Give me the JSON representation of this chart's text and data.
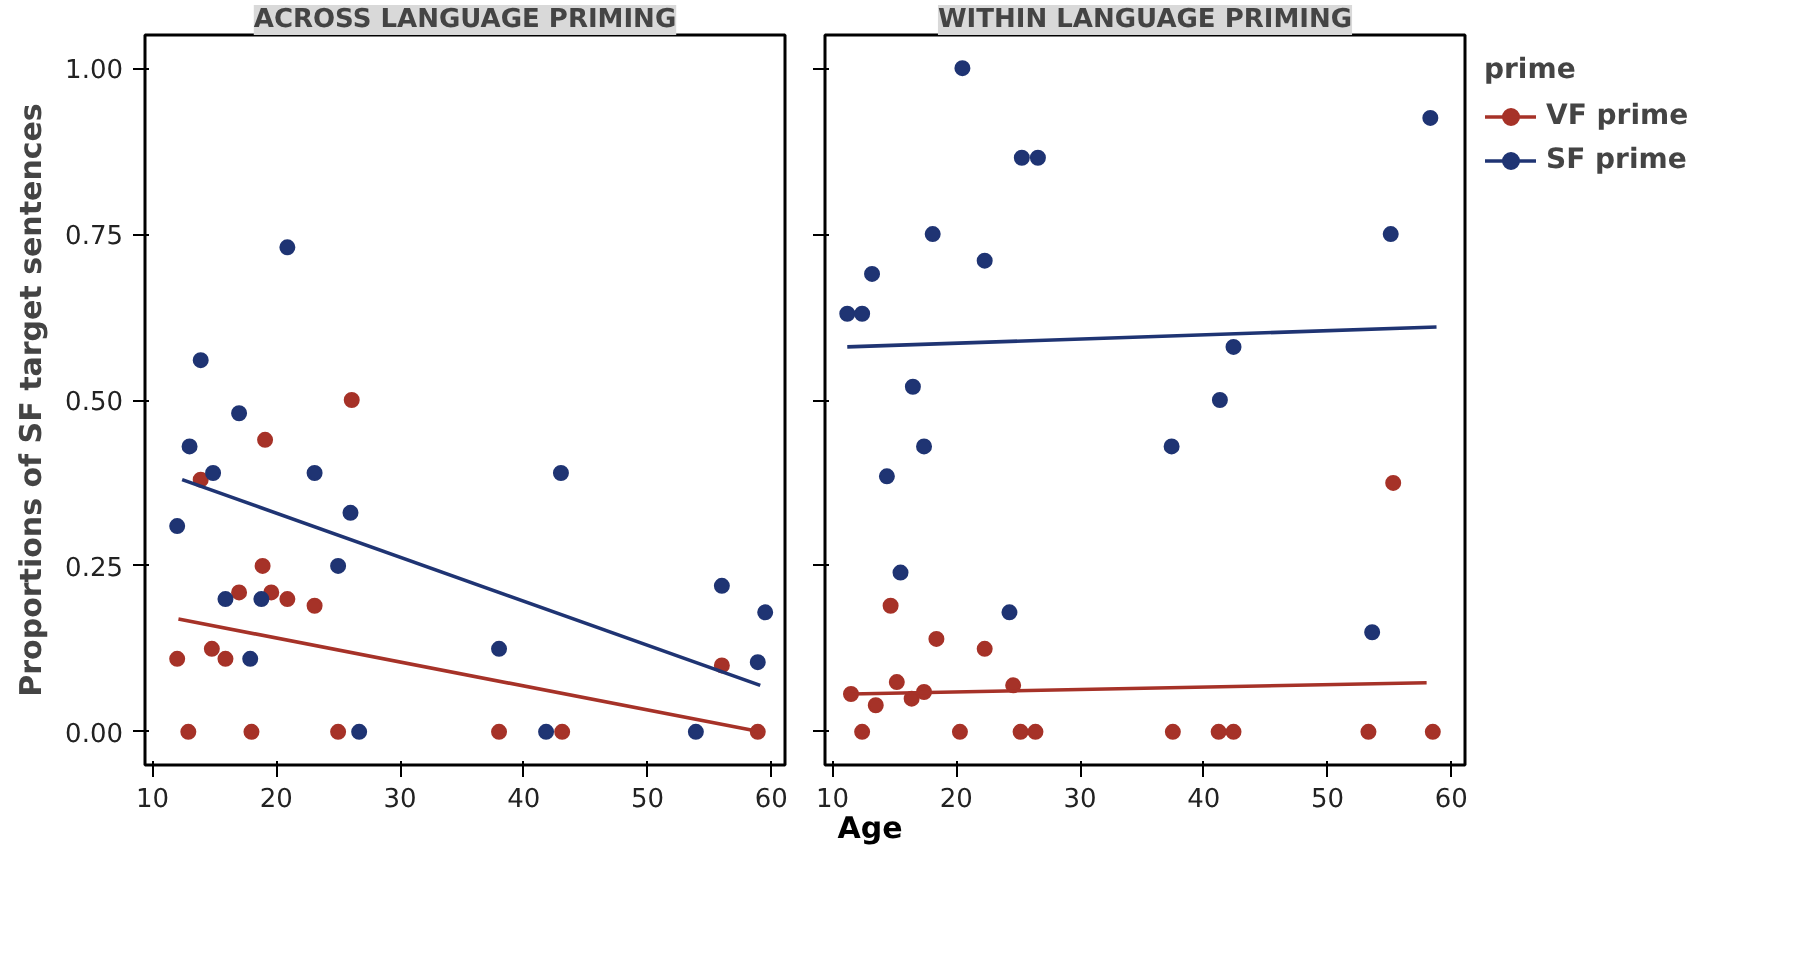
{
  "chart_data": [
    {
      "type": "scatter",
      "title": "ACROSS LANGUAGE PRIMING",
      "ylabel": "Proportions of SF target sentences",
      "xlabel": "Age",
      "xlim": [
        9.4,
        61.1
      ],
      "ylim": [
        -0.05,
        1.05
      ],
      "xticks": [
        10,
        20,
        30,
        40,
        50,
        60
      ],
      "yticks": [
        {
          "value": 0,
          "label": "0.00"
        },
        {
          "value": 0.25,
          "label": "0.25"
        },
        {
          "value": 0.5,
          "label": "0.50"
        },
        {
          "value": 0.75,
          "label": "0.75"
        },
        {
          "value": 1,
          "label": "1.00"
        }
      ],
      "grid": false,
      "series": [
        {
          "marker": "circle",
          "color": "#a63228",
          "x": [
            12.0,
            12.9,
            13.9,
            14.8,
            15.9,
            17.0,
            18.0,
            18.9,
            19.1,
            19.6,
            20.9,
            23.1,
            25.0,
            26.1,
            38.0,
            43.1,
            56.0,
            58.9
          ],
          "values": [
            0.11,
            0,
            0.38,
            0.125,
            0.11,
            0.21,
            0,
            0.25,
            0.44,
            0.21,
            0.2,
            0.19,
            0,
            0.5,
            0,
            0,
            0.1,
            0
          ]
        },
        {
          "marker": "circle",
          "color": "#1f3473",
          "x": [
            12.0,
            13.0,
            13.9,
            14.9,
            15.9,
            17.0,
            17.9,
            18.8,
            20.9,
            23.1,
            25.0,
            26.0,
            26.7,
            38.0,
            41.8,
            43.0,
            53.9,
            56.0,
            58.9,
            59.5
          ],
          "values": [
            0.31,
            0.43,
            0.56,
            0.39,
            0.2,
            0.48,
            0.11,
            0.2,
            0.73,
            0.39,
            0.25,
            0.33,
            0,
            0.125,
            0,
            0.39,
            0,
            0.22,
            0.105,
            0.18
          ]
        },
        {
          "type": "line",
          "color": "#a63228",
          "x": [
            12.1,
            59.1
          ],
          "values": [
            0.17,
            0.0
          ]
        },
        {
          "type": "line",
          "color": "#1f3473",
          "x": [
            12.4,
            59.1
          ],
          "values": [
            0.38,
            0.07
          ]
        }
      ]
    },
    {
      "type": "scatter",
      "title": "WITHIN LANGUAGE PRIMING",
      "legend_title": "prime",
      "xlim": [
        9.4,
        61.1
      ],
      "ylim": [
        -0.05,
        1.05
      ],
      "xticks": [
        10,
        20,
        30,
        40,
        50,
        60
      ],
      "yticks": [
        0,
        0.25,
        0.5,
        0.75,
        1
      ],
      "tick_labels": "x",
      "grid": false,
      "legend": "right",
      "series": [
        {
          "marker": "circle",
          "name": "VF prime",
          "color": "#a63228",
          "x": [
            11.5,
            12.4,
            13.5,
            14.7,
            15.2,
            16.4,
            17.4,
            18.4,
            20.3,
            22.3,
            24.6,
            25.2,
            26.4,
            37.5,
            41.2,
            42.4,
            53.3,
            55.3,
            58.5
          ],
          "values": [
            0.057,
            0,
            0.04,
            0.19,
            0.075,
            0.05,
            0.06,
            0.14,
            0,
            0.125,
            0.07,
            0,
            0,
            0,
            0,
            0,
            0,
            0.375,
            0
          ]
        },
        {
          "marker": "circle",
          "name": "SF prime",
          "color": "#1f3473",
          "x": [
            11.2,
            12.4,
            13.2,
            14.4,
            15.5,
            16.5,
            17.4,
            18.1,
            20.5,
            22.3,
            24.3,
            25.3,
            26.6,
            37.4,
            41.3,
            42.4,
            53.6,
            55.1,
            58.3
          ],
          "values": [
            0.63,
            0.63,
            0.69,
            0.385,
            0.24,
            0.52,
            0.43,
            0.75,
            1.0,
            0.71,
            0.18,
            0.865,
            0.865,
            0.43,
            0.5,
            0.58,
            0.15,
            0.75,
            0.925
          ]
        },
        {
          "type": "line",
          "color": "#a63228",
          "x": [
            11.5,
            58.0
          ],
          "values": [
            0.057,
            0.074
          ]
        },
        {
          "type": "line",
          "color": "#1f3473",
          "x": [
            11.2,
            58.8
          ],
          "values": [
            0.58,
            0.61
          ]
        }
      ]
    }
  ]
}
